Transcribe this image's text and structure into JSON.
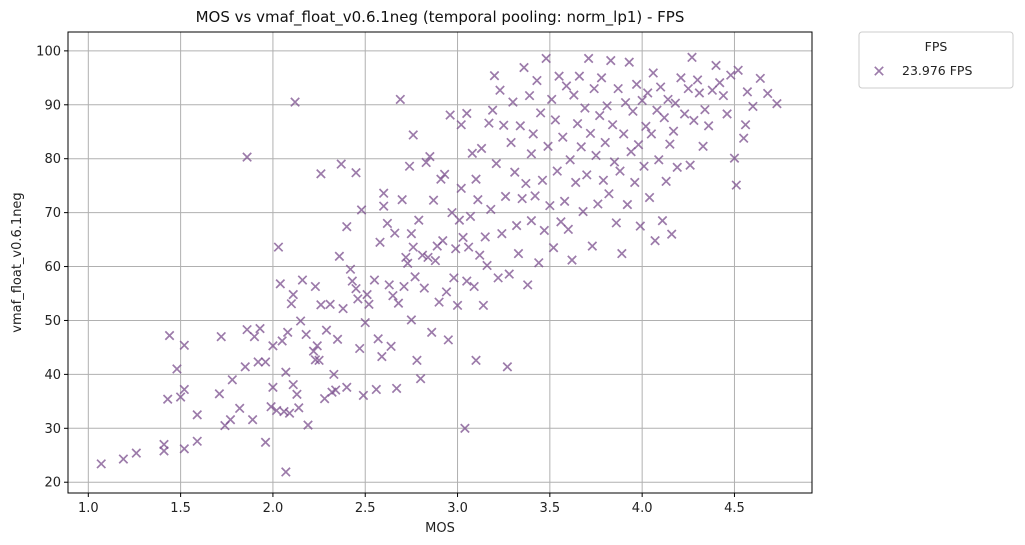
{
  "chart_data": {
    "type": "scatter",
    "title": "MOS vs vmaf_float_v0.6.1neg (temporal pooling: norm_lp1) - FPS",
    "xlabel": "MOS",
    "ylabel": "vmaf_float_v0.6.1neg",
    "xlim": [
      0.89,
      4.92
    ],
    "ylim": [
      18,
      103.5
    ],
    "xticks": [
      1.0,
      1.5,
      2.0,
      2.5,
      3.0,
      3.5,
      4.0,
      4.5
    ],
    "xtick_labels": [
      "1.0",
      "1.5",
      "2.0",
      "2.5",
      "3.0",
      "3.5",
      "4.0",
      "4.5"
    ],
    "yticks": [
      20,
      30,
      40,
      50,
      60,
      70,
      80,
      90,
      100
    ],
    "ytick_labels": [
      "20",
      "30",
      "40",
      "50",
      "60",
      "70",
      "80",
      "90",
      "100"
    ],
    "grid": true,
    "legend": {
      "title": "FPS",
      "placement": "outside-top-right"
    },
    "colors": {
      "marker": "#7b4f8e",
      "grid": "#b0b0b0",
      "axis": "#000000"
    },
    "series": [
      {
        "name": "23.976 FPS",
        "marker": "x",
        "points": [
          [
            1.07,
            23.4
          ],
          [
            1.19,
            24.3
          ],
          [
            1.26,
            25.4
          ],
          [
            1.41,
            25.8
          ],
          [
            1.41,
            27.0
          ],
          [
            1.43,
            35.4
          ],
          [
            1.44,
            47.2
          ],
          [
            1.48,
            41.0
          ],
          [
            1.5,
            35.8
          ],
          [
            1.52,
            26.2
          ],
          [
            1.52,
            37.2
          ],
          [
            1.52,
            45.4
          ],
          [
            1.59,
            27.6
          ],
          [
            1.59,
            32.5
          ],
          [
            1.71,
            36.4
          ],
          [
            1.72,
            47.0
          ],
          [
            1.74,
            30.5
          ],
          [
            1.77,
            31.6
          ],
          [
            1.78,
            39.0
          ],
          [
            1.82,
            33.7
          ],
          [
            1.85,
            41.4
          ],
          [
            1.86,
            48.3
          ],
          [
            1.86,
            80.3
          ],
          [
            1.89,
            31.6
          ],
          [
            1.9,
            47.0
          ],
          [
            1.92,
            42.3
          ],
          [
            1.93,
            48.5
          ],
          [
            1.96,
            27.4
          ],
          [
            1.96,
            42.3
          ],
          [
            1.99,
            34.0
          ],
          [
            2.0,
            37.6
          ],
          [
            2.0,
            45.3
          ],
          [
            2.02,
            33.3
          ],
          [
            2.03,
            63.6
          ],
          [
            2.04,
            56.8
          ],
          [
            2.05,
            46.2
          ],
          [
            2.06,
            33.1
          ],
          [
            2.07,
            21.9
          ],
          [
            2.07,
            40.4
          ],
          [
            2.08,
            47.8
          ],
          [
            2.09,
            32.8
          ],
          [
            2.1,
            53.1
          ],
          [
            2.11,
            38.1
          ],
          [
            2.11,
            54.8
          ],
          [
            2.12,
            90.5
          ],
          [
            2.13,
            36.3
          ],
          [
            2.14,
            33.8
          ],
          [
            2.15,
            49.9
          ],
          [
            2.16,
            57.5
          ],
          [
            2.18,
            47.4
          ],
          [
            2.19,
            30.6
          ],
          [
            2.22,
            44.3
          ],
          [
            2.23,
            56.3
          ],
          [
            2.23,
            42.7
          ],
          [
            2.24,
            45.3
          ],
          [
            2.25,
            42.6
          ],
          [
            2.26,
            77.2
          ],
          [
            2.26,
            52.9
          ],
          [
            2.28,
            35.5
          ],
          [
            2.29,
            48.2
          ],
          [
            2.31,
            53.0
          ],
          [
            2.32,
            36.7
          ],
          [
            2.33,
            40.0
          ],
          [
            2.34,
            37.1
          ],
          [
            2.35,
            46.5
          ],
          [
            2.36,
            61.9
          ],
          [
            2.37,
            79.0
          ],
          [
            2.38,
            52.2
          ],
          [
            2.4,
            37.6
          ],
          [
            2.4,
            67.4
          ],
          [
            2.42,
            59.5
          ],
          [
            2.43,
            57.3
          ],
          [
            2.45,
            55.9
          ],
          [
            2.45,
            77.4
          ],
          [
            2.46,
            54.0
          ],
          [
            2.47,
            44.8
          ],
          [
            2.48,
            70.5
          ],
          [
            2.49,
            36.1
          ],
          [
            2.5,
            49.6
          ],
          [
            2.51,
            54.8
          ],
          [
            2.52,
            53.0
          ],
          [
            2.55,
            57.5
          ],
          [
            2.56,
            37.2
          ],
          [
            2.57,
            46.6
          ],
          [
            2.58,
            64.5
          ],
          [
            2.59,
            43.3
          ],
          [
            2.6,
            73.6
          ],
          [
            2.6,
            71.2
          ],
          [
            2.62,
            68.0
          ],
          [
            2.63,
            56.6
          ],
          [
            2.64,
            45.2
          ],
          [
            2.65,
            54.6
          ],
          [
            2.66,
            66.2
          ],
          [
            2.67,
            37.4
          ],
          [
            2.68,
            53.2
          ],
          [
            2.69,
            91.0
          ],
          [
            2.7,
            72.4
          ],
          [
            2.71,
            56.3
          ],
          [
            2.72,
            61.7
          ],
          [
            2.73,
            60.6
          ],
          [
            2.74,
            78.6
          ],
          [
            2.75,
            66.1
          ],
          [
            2.75,
            50.1
          ],
          [
            2.76,
            84.4
          ],
          [
            2.76,
            63.6
          ],
          [
            2.77,
            58.1
          ],
          [
            2.78,
            42.6
          ],
          [
            2.79,
            68.6
          ],
          [
            2.8,
            39.2
          ],
          [
            2.81,
            62.1
          ],
          [
            2.82,
            56.0
          ],
          [
            2.83,
            79.3
          ],
          [
            2.84,
            61.7
          ],
          [
            2.85,
            80.4
          ],
          [
            2.86,
            47.8
          ],
          [
            2.87,
            72.3
          ],
          [
            2.88,
            61.1
          ],
          [
            2.89,
            63.8
          ],
          [
            2.9,
            53.4
          ],
          [
            2.91,
            76.2
          ],
          [
            2.92,
            64.8
          ],
          [
            2.93,
            77.1
          ],
          [
            2.94,
            55.3
          ],
          [
            2.95,
            46.4
          ],
          [
            2.96,
            88.1
          ],
          [
            2.97,
            70.0
          ],
          [
            2.98,
            57.9
          ],
          [
            2.99,
            63.3
          ],
          [
            3.0,
            52.8
          ],
          [
            3.01,
            68.6
          ],
          [
            3.02,
            74.5
          ],
          [
            3.02,
            86.3
          ],
          [
            3.03,
            65.4
          ],
          [
            3.04,
            30.0
          ],
          [
            3.05,
            57.3
          ],
          [
            3.05,
            88.4
          ],
          [
            3.06,
            63.6
          ],
          [
            3.07,
            69.3
          ],
          [
            3.08,
            81.0
          ],
          [
            3.09,
            56.3
          ],
          [
            3.1,
            76.2
          ],
          [
            3.1,
            42.6
          ],
          [
            3.11,
            72.4
          ],
          [
            3.12,
            62.1
          ],
          [
            3.13,
            81.9
          ],
          [
            3.14,
            52.8
          ],
          [
            3.15,
            65.5
          ],
          [
            3.16,
            60.2
          ],
          [
            3.17,
            86.6
          ],
          [
            3.18,
            70.6
          ],
          [
            3.19,
            89.0
          ],
          [
            3.2,
            95.4
          ],
          [
            3.21,
            79.1
          ],
          [
            3.22,
            57.9
          ],
          [
            3.23,
            92.7
          ],
          [
            3.24,
            66.1
          ],
          [
            3.25,
            86.2
          ],
          [
            3.26,
            73.0
          ],
          [
            3.27,
            41.4
          ],
          [
            3.28,
            58.6
          ],
          [
            3.29,
            83.0
          ],
          [
            3.3,
            90.5
          ],
          [
            3.31,
            77.5
          ],
          [
            3.32,
            67.6
          ],
          [
            3.33,
            62.4
          ],
          [
            3.34,
            86.1
          ],
          [
            3.35,
            72.6
          ],
          [
            3.36,
            96.9
          ],
          [
            3.37,
            75.4
          ],
          [
            3.38,
            56.6
          ],
          [
            3.39,
            91.7
          ],
          [
            3.4,
            80.9
          ],
          [
            3.4,
            68.5
          ],
          [
            3.41,
            84.6
          ],
          [
            3.42,
            73.1
          ],
          [
            3.43,
            94.5
          ],
          [
            3.44,
            60.7
          ],
          [
            3.45,
            88.5
          ],
          [
            3.46,
            76.0
          ],
          [
            3.47,
            66.7
          ],
          [
            3.48,
            98.6
          ],
          [
            3.49,
            82.3
          ],
          [
            3.5,
            71.3
          ],
          [
            3.51,
            91.0
          ],
          [
            3.52,
            63.5
          ],
          [
            3.53,
            87.2
          ],
          [
            3.54,
            77.7
          ],
          [
            3.55,
            95.3
          ],
          [
            3.56,
            68.3
          ],
          [
            3.57,
            84.0
          ],
          [
            3.58,
            72.1
          ],
          [
            3.59,
            93.5
          ],
          [
            3.6,
            66.9
          ],
          [
            3.61,
            79.8
          ],
          [
            3.62,
            61.2
          ],
          [
            3.63,
            91.8
          ],
          [
            3.64,
            75.6
          ],
          [
            3.65,
            86.5
          ],
          [
            3.66,
            95.3
          ],
          [
            3.67,
            82.2
          ],
          [
            3.68,
            70.2
          ],
          [
            3.69,
            89.4
          ],
          [
            3.7,
            77.0
          ],
          [
            3.71,
            98.6
          ],
          [
            3.72,
            84.7
          ],
          [
            3.73,
            63.8
          ],
          [
            3.74,
            93.0
          ],
          [
            3.75,
            80.6
          ],
          [
            3.76,
            71.6
          ],
          [
            3.77,
            88.0
          ],
          [
            3.78,
            95.0
          ],
          [
            3.79,
            76.0
          ],
          [
            3.8,
            83.0
          ],
          [
            3.81,
            89.8
          ],
          [
            3.82,
            73.5
          ],
          [
            3.83,
            98.2
          ],
          [
            3.84,
            86.3
          ],
          [
            3.85,
            79.4
          ],
          [
            3.86,
            68.1
          ],
          [
            3.87,
            93.0
          ],
          [
            3.88,
            77.7
          ],
          [
            3.89,
            62.4
          ],
          [
            3.9,
            84.6
          ],
          [
            3.91,
            90.4
          ],
          [
            3.92,
            71.5
          ],
          [
            3.93,
            97.9
          ],
          [
            3.94,
            81.3
          ],
          [
            3.95,
            88.8
          ],
          [
            3.96,
            75.6
          ],
          [
            3.97,
            93.8
          ],
          [
            3.98,
            82.6
          ],
          [
            3.99,
            67.5
          ],
          [
            4.0,
            90.8
          ],
          [
            4.01,
            78.6
          ],
          [
            4.02,
            86.0
          ],
          [
            4.03,
            92.2
          ],
          [
            4.04,
            72.8
          ],
          [
            4.05,
            84.6
          ],
          [
            4.06,
            95.9
          ],
          [
            4.07,
            64.8
          ],
          [
            4.08,
            89.0
          ],
          [
            4.09,
            79.8
          ],
          [
            4.1,
            93.3
          ],
          [
            4.11,
            68.5
          ],
          [
            4.12,
            87.6
          ],
          [
            4.13,
            75.8
          ],
          [
            4.14,
            91.0
          ],
          [
            4.15,
            82.7
          ],
          [
            4.16,
            66.0
          ],
          [
            4.17,
            85.1
          ],
          [
            4.18,
            90.3
          ],
          [
            4.19,
            78.4
          ],
          [
            4.21,
            95.0
          ],
          [
            4.23,
            88.3
          ],
          [
            4.25,
            93.0
          ],
          [
            4.26,
            78.8
          ],
          [
            4.27,
            98.8
          ],
          [
            4.28,
            87.1
          ],
          [
            4.3,
            94.6
          ],
          [
            4.31,
            92.2
          ],
          [
            4.33,
            82.3
          ],
          [
            4.34,
            89.1
          ],
          [
            4.36,
            86.1
          ],
          [
            4.38,
            92.7
          ],
          [
            4.4,
            97.3
          ],
          [
            4.42,
            94.1
          ],
          [
            4.44,
            91.7
          ],
          [
            4.46,
            88.3
          ],
          [
            4.48,
            95.5
          ],
          [
            4.5,
            80.1
          ],
          [
            4.51,
            75.1
          ],
          [
            4.52,
            96.4
          ],
          [
            4.55,
            83.8
          ],
          [
            4.56,
            86.3
          ],
          [
            4.57,
            92.4
          ],
          [
            4.6,
            89.7
          ],
          [
            4.64,
            94.9
          ],
          [
            4.68,
            92.1
          ],
          [
            4.73,
            90.2
          ]
        ]
      }
    ]
  }
}
